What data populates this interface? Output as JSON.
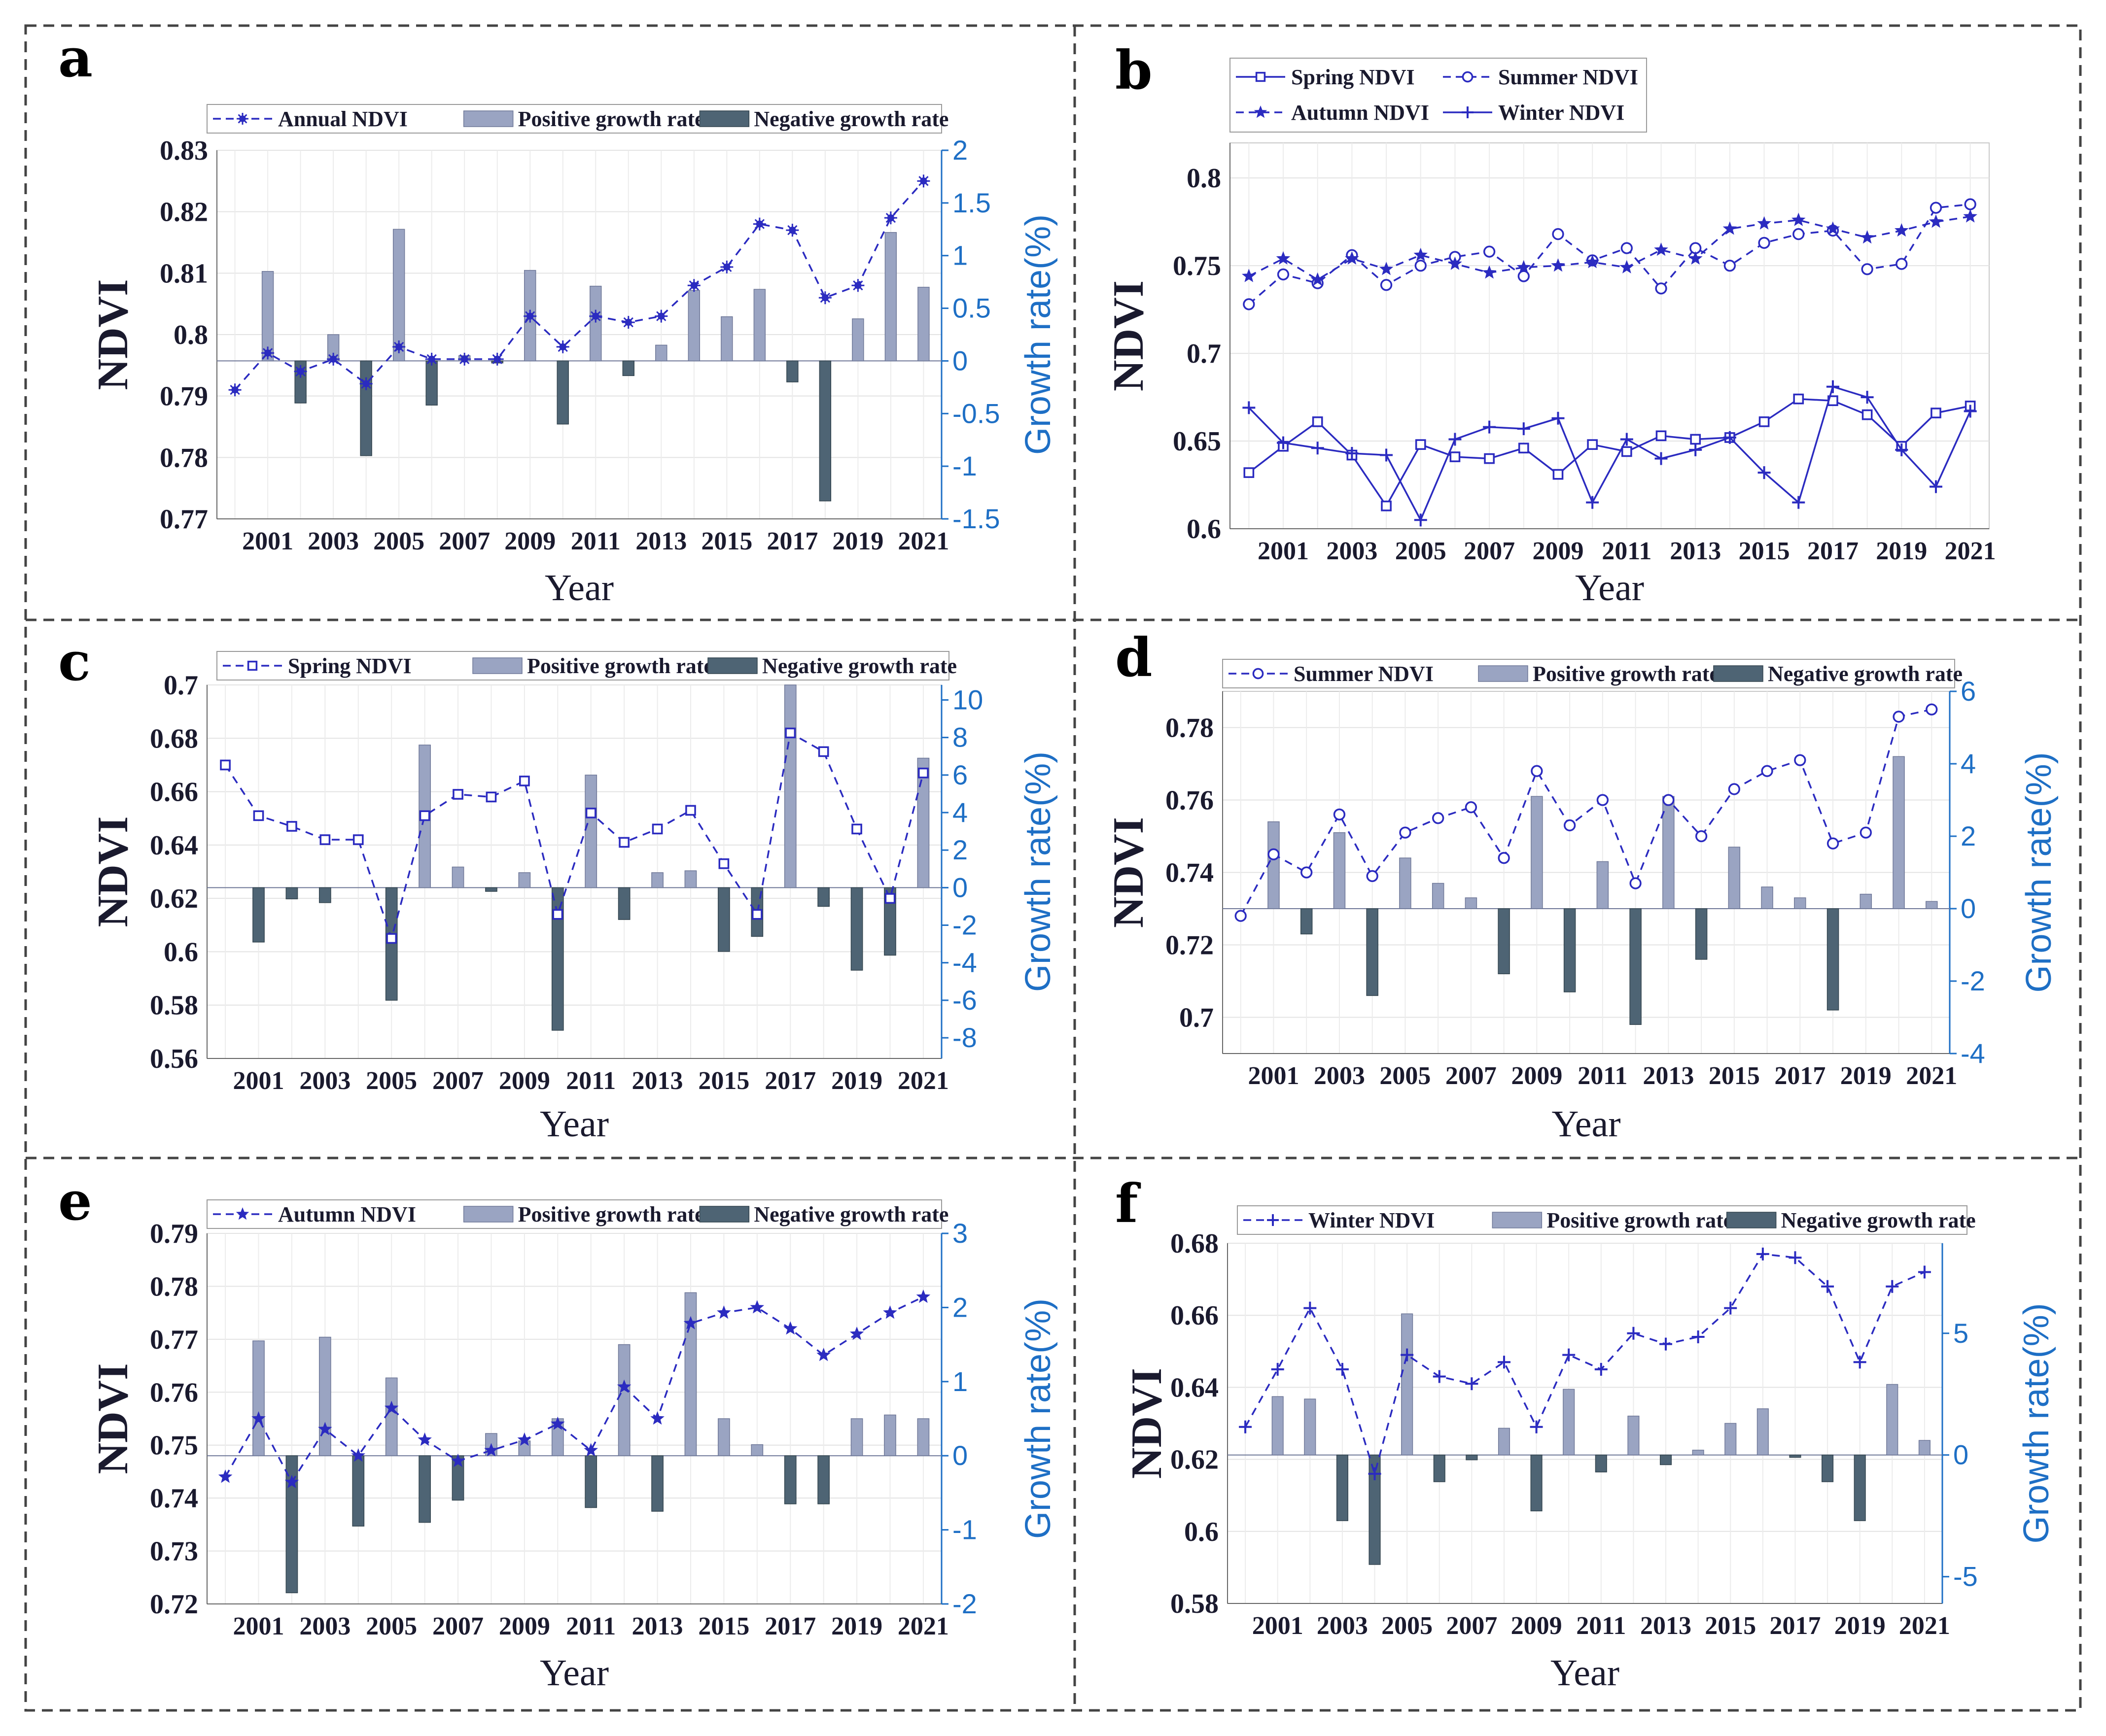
{
  "colors": {
    "line": "#2b2bc0",
    "positive_bar": "#9aa4c2",
    "positive_bar_edge": "#6f7898",
    "negative_bar": "#4e6474",
    "negative_bar_edge": "#34454f",
    "right_axis": "#1e6fc5",
    "text": "#1a1a2e"
  },
  "chart_data": [
    {
      "panel": "a",
      "type": "bar",
      "xlabel": "Year",
      "ylabel": "NDVI",
      "y2label": "Growth rate(%)",
      "ylim": [
        0.77,
        0.83
      ],
      "yticks": [
        0.77,
        0.78,
        0.79,
        0.8,
        0.81,
        0.82,
        0.83
      ],
      "y2lim": [
        -1.5,
        2
      ],
      "y2ticks": [
        -1.5,
        -1,
        -0.5,
        0,
        0.5,
        1,
        1.5,
        2
      ],
      "xticks": [
        "2001",
        "2003",
        "2005",
        "2007",
        "2009",
        "2011",
        "2013",
        "2015",
        "2017",
        "2019",
        "2021"
      ],
      "legend": [
        "Annual NDVI",
        "Positive growth rate",
        "Negative growth rate"
      ],
      "x": [
        2000,
        2001,
        2002,
        2003,
        2004,
        2005,
        2006,
        2007,
        2008,
        2009,
        2010,
        2011,
        2012,
        2013,
        2014,
        2015,
        2016,
        2017,
        2018,
        2019,
        2020,
        2021
      ],
      "series": [
        {
          "name": "Annual NDVI",
          "marker": "*",
          "values": [
            0.791,
            0.797,
            0.794,
            0.796,
            0.792,
            0.798,
            0.796,
            0.796,
            0.796,
            0.803,
            0.798,
            0.803,
            0.802,
            0.803,
            0.808,
            0.811,
            0.818,
            0.817,
            0.806,
            0.808,
            0.819,
            0.825
          ]
        },
        {
          "name": "Growth rate",
          "values": [
            null,
            0.85,
            -0.4,
            0.25,
            -0.9,
            1.25,
            -0.42,
            0.05,
            -0.02,
            0.86,
            -0.6,
            0.71,
            -0.14,
            0.15,
            0.67,
            0.42,
            0.68,
            -0.2,
            -1.33,
            0.4,
            1.22,
            0.7
          ]
        }
      ]
    },
    {
      "panel": "b",
      "type": "line",
      "xlabel": "Year",
      "ylabel": "NDVI",
      "ylim": [
        0.6,
        0.82
      ],
      "yticks": [
        0.6,
        0.65,
        0.7,
        0.75,
        0.8
      ],
      "xticks": [
        "2001",
        "2003",
        "2005",
        "2007",
        "2009",
        "2011",
        "2013",
        "2015",
        "2017",
        "2019",
        "2021"
      ],
      "legend": [
        "Spring NDVI",
        "Summer NDVI",
        "Autumn NDVI",
        "Winter NDVI"
      ],
      "x": [
        2000,
        2001,
        2002,
        2003,
        2004,
        2005,
        2006,
        2007,
        2008,
        2009,
        2010,
        2011,
        2012,
        2013,
        2014,
        2015,
        2016,
        2017,
        2018,
        2019,
        2020,
        2021
      ],
      "series": [
        {
          "name": "Spring NDVI",
          "marker": "square",
          "dash": false,
          "values": [
            0.632,
            0.647,
            0.661,
            0.642,
            0.613,
            0.648,
            0.641,
            0.64,
            0.646,
            0.631,
            0.648,
            0.644,
            0.653,
            0.651,
            0.652,
            0.661,
            0.674,
            0.673,
            0.665,
            0.647,
            0.666,
            0.67
          ]
        },
        {
          "name": "Summer NDVI",
          "marker": "circle",
          "dash": true,
          "values": [
            0.728,
            0.745,
            0.74,
            0.756,
            0.739,
            0.75,
            0.755,
            0.758,
            0.744,
            0.768,
            0.753,
            0.76,
            0.737,
            0.76,
            0.75,
            0.763,
            0.768,
            0.77,
            0.748,
            0.751,
            0.783,
            0.785
          ]
        },
        {
          "name": "Autumn NDVI",
          "marker": "star",
          "dash": true,
          "values": [
            0.744,
            0.754,
            0.742,
            0.754,
            0.748,
            0.756,
            0.751,
            0.746,
            0.749,
            0.75,
            0.752,
            0.749,
            0.759,
            0.754,
            0.771,
            0.774,
            0.776,
            0.771,
            0.766,
            0.77,
            0.775,
            0.778
          ]
        },
        {
          "name": "Winter NDVI",
          "marker": "plus",
          "dash": false,
          "values": [
            0.669,
            0.649,
            0.646,
            0.643,
            0.642,
            0.605,
            0.651,
            0.658,
            0.657,
            0.663,
            0.615,
            0.651,
            0.64,
            0.645,
            0.652,
            0.632,
            0.615,
            0.681,
            0.675,
            0.645,
            0.624,
            0.667
          ]
        }
      ]
    },
    {
      "panel": "c",
      "type": "bar",
      "xlabel": "Year",
      "ylabel": "NDVI",
      "y2label": "Growth rate(%)",
      "ylim": [
        0.56,
        0.7
      ],
      "yticks": [
        0.56,
        0.58,
        0.6,
        0.62,
        0.64,
        0.66,
        0.68,
        0.7
      ],
      "y2lim": [
        -9.1,
        10.8
      ],
      "y2ticks": [
        -8,
        -6,
        -4,
        -2,
        0,
        2,
        4,
        6,
        8,
        10
      ],
      "xticks": [
        "2001",
        "2003",
        "2005",
        "2007",
        "2009",
        "2011",
        "2013",
        "2015",
        "2017",
        "2019",
        "2021"
      ],
      "legend": [
        "Spring NDVI",
        "Positive growth rate",
        "Negative growth rate"
      ],
      "x": [
        2000,
        2001,
        2002,
        2003,
        2004,
        2005,
        2006,
        2007,
        2008,
        2009,
        2010,
        2011,
        2012,
        2013,
        2014,
        2015,
        2016,
        2017,
        2018,
        2019,
        2020,
        2021
      ],
      "series": [
        {
          "name": "Spring NDVI",
          "marker": "square",
          "values": [
            0.67,
            0.651,
            0.647,
            0.642,
            0.642,
            0.605,
            0.651,
            0.659,
            0.658,
            0.664,
            0.614,
            0.652,
            0.641,
            0.646,
            0.653,
            0.633,
            0.614,
            0.682,
            0.675,
            0.646,
            0.62,
            0.667
          ]
        },
        {
          "name": "Growth rate",
          "values": [
            null,
            -2.9,
            -0.6,
            -0.8,
            0,
            -6,
            7.6,
            1.1,
            -0.2,
            0.8,
            -7.6,
            6,
            -1.7,
            0.8,
            0.9,
            -3.4,
            -2.6,
            10.8,
            -1,
            -4.4,
            -3.6,
            6.9
          ]
        }
      ]
    },
    {
      "panel": "d",
      "type": "bar",
      "xlabel": "Year",
      "ylabel": "NDVI",
      "y2label": "Growth rate(%)",
      "ylim": [
        0.69,
        0.79
      ],
      "yticks": [
        0.7,
        0.72,
        0.74,
        0.76,
        0.78
      ],
      "y2lim": [
        -4,
        6
      ],
      "y2ticks": [
        -4,
        -2,
        0,
        2,
        4,
        6
      ],
      "xticks": [
        "2001",
        "2003",
        "2005",
        "2007",
        "2009",
        "2011",
        "2013",
        "2015",
        "2017",
        "2019",
        "2021"
      ],
      "legend": [
        "Summer NDVI",
        "Positive growth rate",
        "Negative growth rate"
      ],
      "x": [
        2000,
        2001,
        2002,
        2003,
        2004,
        2005,
        2006,
        2007,
        2008,
        2009,
        2010,
        2011,
        2012,
        2013,
        2014,
        2015,
        2016,
        2017,
        2018,
        2019,
        2020,
        2021
      ],
      "series": [
        {
          "name": "Summer NDVI",
          "marker": "circle",
          "values": [
            0.728,
            0.745,
            0.74,
            0.756,
            0.739,
            0.751,
            0.755,
            0.758,
            0.744,
            0.768,
            0.753,
            0.76,
            0.737,
            0.76,
            0.75,
            0.763,
            0.768,
            0.771,
            0.748,
            0.751,
            0.783,
            0.785
          ]
        },
        {
          "name": "Growth rate",
          "values": [
            null,
            2.4,
            -0.7,
            2.1,
            -2.4,
            1.4,
            0.7,
            0.3,
            -1.8,
            3.1,
            -2.3,
            1.3,
            -3.2,
            3.1,
            -1.4,
            1.7,
            0.6,
            0.3,
            -2.8,
            0.4,
            4.2,
            0.2
          ]
        }
      ]
    },
    {
      "panel": "e",
      "type": "bar",
      "xlabel": "Year",
      "ylabel": "NDVI",
      "y2label": "Growth rate(%)",
      "ylim": [
        0.72,
        0.79
      ],
      "yticks": [
        0.72,
        0.73,
        0.74,
        0.75,
        0.76,
        0.77,
        0.78,
        0.79
      ],
      "y2lim": [
        -2,
        3
      ],
      "y2ticks": [
        -2,
        -1,
        0,
        1,
        2,
        3
      ],
      "xticks": [
        "2001",
        "2003",
        "2005",
        "2007",
        "2009",
        "2011",
        "2013",
        "2015",
        "2017",
        "2019",
        "2021"
      ],
      "legend": [
        "Autumn NDVI",
        "Positive growth rate",
        "Negative growth rate"
      ],
      "x": [
        2000,
        2001,
        2002,
        2003,
        2004,
        2005,
        2006,
        2007,
        2008,
        2009,
        2010,
        2011,
        2012,
        2013,
        2014,
        2015,
        2016,
        2017,
        2018,
        2019,
        2020,
        2021
      ],
      "series": [
        {
          "name": "Autumn NDVI",
          "marker": "star",
          "values": [
            0.744,
            0.755,
            0.743,
            0.753,
            0.748,
            0.757,
            0.751,
            0.747,
            0.749,
            0.751,
            0.754,
            0.749,
            0.761,
            0.755,
            0.773,
            0.775,
            0.776,
            0.772,
            0.767,
            0.771,
            0.775,
            0.778
          ]
        },
        {
          "name": "Growth rate",
          "values": [
            null,
            1.55,
            -1.85,
            1.6,
            -0.95,
            1.05,
            -0.9,
            -0.6,
            0.3,
            0.2,
            0.5,
            -0.7,
            1.5,
            -0.75,
            2.2,
            0.5,
            0.15,
            -0.65,
            -0.65,
            0.5,
            0.55,
            0.5
          ]
        }
      ]
    },
    {
      "panel": "f",
      "type": "bar",
      "xlabel": "Year",
      "ylabel": "NDVI",
      "y2label": "Growth rate(%)",
      "ylim": [
        0.58,
        0.68
      ],
      "yticks": [
        0.58,
        0.6,
        0.62,
        0.64,
        0.66,
        0.68
      ],
      "y2lim": [
        -6.1,
        8.7
      ],
      "y2ticks": [
        -5,
        0,
        5
      ],
      "xticks": [
        "2001",
        "2003",
        "2005",
        "2007",
        "2009",
        "2011",
        "2013",
        "2015",
        "2017",
        "2019",
        "2021"
      ],
      "legend": [
        "Winter NDVI",
        "Positive growth rate",
        "Negative growth rate"
      ],
      "x": [
        2000,
        2001,
        2002,
        2003,
        2004,
        2005,
        2006,
        2007,
        2008,
        2009,
        2010,
        2011,
        2012,
        2013,
        2014,
        2015,
        2016,
        2017,
        2018,
        2019,
        2020,
        2021
      ],
      "series": [
        {
          "name": "Winter NDVI",
          "marker": "plus",
          "values": [
            0.629,
            0.645,
            0.662,
            0.645,
            0.616,
            0.649,
            0.643,
            0.641,
            0.647,
            0.629,
            0.649,
            0.645,
            0.655,
            0.652,
            0.654,
            0.662,
            0.677,
            0.676,
            0.668,
            0.647,
            0.668,
            0.672
          ]
        },
        {
          "name": "Growth rate",
          "values": [
            null,
            2.4,
            2.3,
            -2.7,
            -4.5,
            5.8,
            -1.1,
            -0.2,
            1.1,
            -2.3,
            2.7,
            -0.7,
            1.6,
            -0.4,
            0.2,
            1.3,
            1.9,
            -0.1,
            -1.1,
            -2.7,
            2.9,
            0.6
          ]
        }
      ]
    }
  ]
}
